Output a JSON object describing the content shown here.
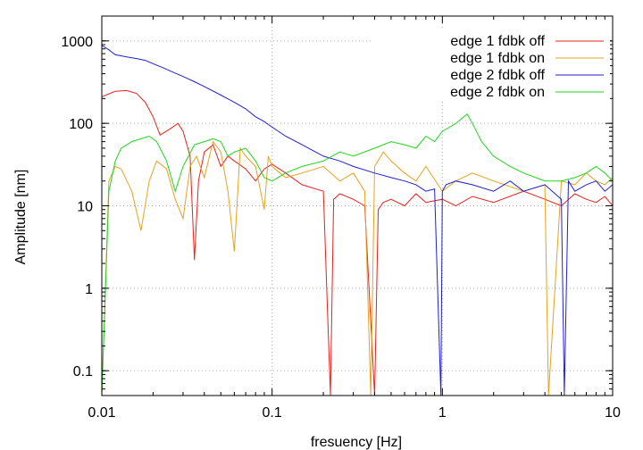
{
  "chart_data": {
    "type": "line",
    "title": "",
    "xlabel": "fresuency [Hz]",
    "ylabel": "Amplitude [nm]",
    "x_scale": "log",
    "y_scale": "log",
    "xlim": [
      0.01,
      10
    ],
    "ylim": [
      0.05,
      2000
    ],
    "x_ticks": [
      {
        "value": 0.01,
        "label": "0.01"
      },
      {
        "value": 0.1,
        "label": "0.1"
      },
      {
        "value": 1,
        "label": "1"
      },
      {
        "value": 10,
        "label": "10"
      }
    ],
    "y_ticks": [
      {
        "value": 0.1,
        "label": "0.1"
      },
      {
        "value": 1,
        "label": "1"
      },
      {
        "value": 10,
        "label": "10"
      },
      {
        "value": 100,
        "label": "100"
      },
      {
        "value": 1000,
        "label": "1000"
      }
    ],
    "grid": true,
    "legend_position": "top-right",
    "series": [
      {
        "name": "edge 1 fdbk off",
        "color": "#e8211c",
        "x": [
          0.01,
          0.012,
          0.014,
          0.016,
          0.018,
          0.02,
          0.022,
          0.025,
          0.028,
          0.03,
          0.033,
          0.035,
          0.037,
          0.04,
          0.045,
          0.05,
          0.055,
          0.06,
          0.07,
          0.08,
          0.09,
          0.1,
          0.12,
          0.15,
          0.2,
          0.22,
          0.23,
          0.25,
          0.3,
          0.35,
          0.4,
          0.42,
          0.45,
          0.5,
          0.6,
          0.7,
          0.8,
          1,
          1.2,
          1.5,
          2,
          3,
          4,
          5,
          6,
          7,
          8,
          9,
          10
        ],
        "y": [
          210,
          245,
          250,
          230,
          180,
          120,
          72,
          85,
          100,
          80,
          40,
          2.2,
          20,
          45,
          55,
          30,
          40,
          35,
          28,
          20,
          28,
          32,
          25,
          18,
          15,
          0.05,
          12,
          14,
          12,
          10,
          0.05,
          9,
          11,
          12,
          10,
          14,
          11,
          12,
          10,
          13,
          11,
          15,
          12,
          10,
          14,
          12,
          11,
          13,
          10
        ]
      },
      {
        "name": "edge 1 fdbk on",
        "color": "#e8a21c",
        "x": [
          0.01,
          0.011,
          0.012,
          0.013,
          0.015,
          0.017,
          0.019,
          0.021,
          0.024,
          0.027,
          0.03,
          0.033,
          0.036,
          0.04,
          0.045,
          0.05,
          0.055,
          0.06,
          0.065,
          0.07,
          0.08,
          0.09,
          0.095,
          0.1,
          0.12,
          0.15,
          0.2,
          0.25,
          0.3,
          0.35,
          0.38,
          0.4,
          0.45,
          0.5,
          0.6,
          0.7,
          0.8,
          1,
          1.2,
          1.5,
          2,
          3,
          4,
          4.2,
          5,
          6,
          7,
          8,
          9,
          10
        ],
        "y": [
          0.05,
          20,
          30,
          28,
          15,
          5,
          20,
          35,
          28,
          12,
          7,
          30,
          40,
          22,
          60,
          45,
          15,
          2.8,
          50,
          40,
          30,
          9,
          40,
          30,
          22,
          25,
          30,
          20,
          25,
          15,
          0.05,
          30,
          45,
          35,
          25,
          20,
          30,
          15,
          20,
          25,
          20,
          15,
          18,
          0.05,
          20,
          18,
          25,
          20,
          18,
          22
        ]
      },
      {
        "name": "edge 2 fdbk off",
        "color": "#1f1fd6",
        "x": [
          0.01,
          0.011,
          0.012,
          0.014,
          0.016,
          0.018,
          0.02,
          0.023,
          0.026,
          0.03,
          0.035,
          0.04,
          0.05,
          0.06,
          0.07,
          0.08,
          0.09,
          0.1,
          0.12,
          0.15,
          0.18,
          0.2,
          0.25,
          0.3,
          0.4,
          0.5,
          0.6,
          0.7,
          0.8,
          0.9,
          0.98,
          1,
          1.05,
          1.2,
          1.5,
          2,
          2.5,
          3,
          4,
          5,
          5.2,
          5.5,
          6,
          7,
          8,
          9,
          10
        ],
        "y": [
          880,
          780,
          680,
          640,
          610,
          580,
          530,
          470,
          420,
          370,
          320,
          280,
          220,
          180,
          150,
          120,
          105,
          90,
          70,
          55,
          45,
          40,
          35,
          30,
          25,
          22,
          20,
          18,
          15,
          16,
          0.05,
          15,
          18,
          20,
          18,
          15,
          20,
          15,
          18,
          12,
          0.05,
          20,
          15,
          18,
          20,
          15,
          18
        ]
      },
      {
        "name": "edge 2 fdbk on",
        "color": "#1fd61f",
        "x": [
          0.01,
          0.011,
          0.012,
          0.013,
          0.015,
          0.017,
          0.019,
          0.021,
          0.024,
          0.027,
          0.03,
          0.035,
          0.04,
          0.045,
          0.05,
          0.055,
          0.06,
          0.07,
          0.08,
          0.09,
          0.1,
          0.12,
          0.15,
          0.2,
          0.25,
          0.3,
          0.4,
          0.5,
          0.6,
          0.7,
          0.8,
          0.9,
          1,
          1.2,
          1.4,
          1.5,
          1.7,
          2,
          2.5,
          3,
          4,
          5,
          6,
          7,
          8,
          9,
          10
        ],
        "y": [
          0.05,
          15,
          35,
          50,
          60,
          65,
          70,
          60,
          35,
          15,
          30,
          55,
          60,
          65,
          60,
          40,
          45,
          50,
          35,
          22,
          20,
          25,
          30,
          35,
          45,
          40,
          50,
          60,
          55,
          50,
          70,
          60,
          80,
          100,
          130,
          100,
          60,
          40,
          30,
          25,
          20,
          20,
          22,
          25,
          30,
          25,
          20
        ]
      }
    ]
  }
}
